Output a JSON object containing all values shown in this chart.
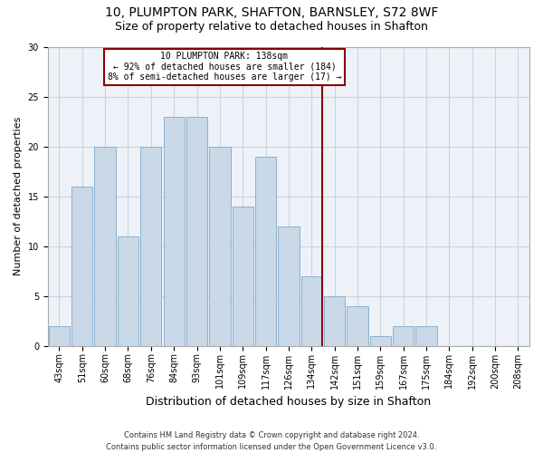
{
  "title1": "10, PLUMPTON PARK, SHAFTON, BARNSLEY, S72 8WF",
  "title2": "Size of property relative to detached houses in Shafton",
  "xlabel": "Distribution of detached houses by size in Shafton",
  "ylabel": "Number of detached properties",
  "footnote": "Contains HM Land Registry data © Crown copyright and database right 2024.\nContains public sector information licensed under the Open Government Licence v3.0.",
  "bins": [
    "43sqm",
    "51sqm",
    "60sqm",
    "68sqm",
    "76sqm",
    "84sqm",
    "93sqm",
    "101sqm",
    "109sqm",
    "117sqm",
    "126sqm",
    "134sqm",
    "142sqm",
    "151sqm",
    "159sqm",
    "167sqm",
    "175sqm",
    "184sqm",
    "192sqm",
    "200sqm",
    "208sqm"
  ],
  "values": [
    2,
    16,
    20,
    11,
    20,
    23,
    23,
    20,
    14,
    19,
    12,
    7,
    5,
    4,
    1,
    2,
    2,
    0,
    0,
    0,
    0
  ],
  "bar_color": "#c9d9e8",
  "bar_edge_color": "#8ab0cc",
  "ylim": [
    0,
    30
  ],
  "yticks": [
    0,
    5,
    10,
    15,
    20,
    25,
    30
  ],
  "grid_color": "#c8d4e0",
  "background_color": "#eef2f8",
  "title1_fontsize": 10,
  "title2_fontsize": 9,
  "xlabel_fontsize": 9,
  "ylabel_fontsize": 8,
  "tick_fontsize": 7,
  "footnote_fontsize": 6,
  "property_label": "10 PLUMPTON PARK: 138sqm",
  "annotation_line1": "← 92% of detached houses are smaller (184)",
  "annotation_line2": "8% of semi-detached houses are larger (17) →",
  "vline_bin_index": 12.5,
  "annot_fontsize": 7
}
